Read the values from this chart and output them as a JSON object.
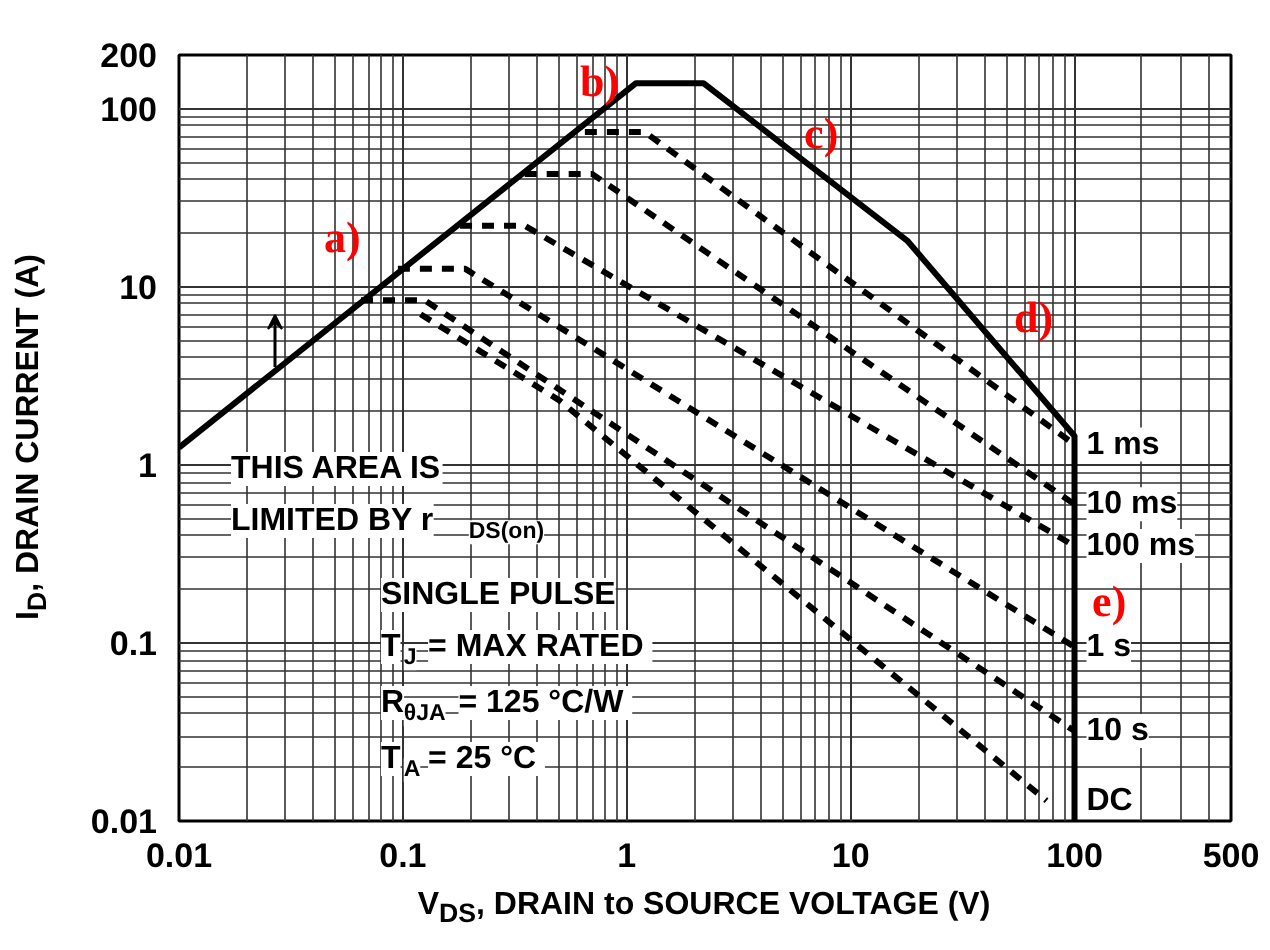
{
  "chart_data": {
    "type": "line",
    "xlabel": "V$_{DS}$, DRAIN to SOURCE VOLTAGE (V)",
    "ylabel": "I$_{D}$, DRAIN CURRENT (A)",
    "log": "xy",
    "grid": true,
    "marker": "none",
    "xlim": [
      0.01,
      500
    ],
    "xticks": [
      0.01,
      0.1,
      1,
      10,
      100,
      500
    ],
    "ylim": [
      0.01,
      200
    ],
    "yticks": [
      0.01,
      0.1,
      1,
      10,
      100,
      200
    ],
    "series": [
      {
        "color": "#000000",
        "line_style": "solid",
        "x": [
          0.01,
          1.1,
          2.2,
          18,
          100,
          100
        ],
        "values": [
          1.25,
          139,
          139,
          18,
          1.45,
          0.01
        ]
      },
      {
        "name": "1 ms",
        "color": "#000000",
        "line_style": "dashed",
        "x": [
          0.65,
          1.2,
          100
        ],
        "values": [
          74,
          74,
          1.3
        ]
      },
      {
        "name": "10 ms",
        "color": "#000000",
        "line_style": "dashed",
        "x": [
          0.35,
          0.7,
          100
        ],
        "values": [
          43,
          43,
          0.6
        ]
      },
      {
        "name": "100 ms",
        "color": "#000000",
        "line_style": "dashed",
        "x": [
          0.18,
          0.35,
          100
        ],
        "values": [
          22,
          22,
          0.35
        ]
      },
      {
        "name": "1 s",
        "color": "#000000",
        "line_style": "dashed",
        "x": [
          0.095,
          0.19,
          100
        ],
        "values": [
          12.6,
          12.6,
          0.095
        ]
      },
      {
        "name": "10 s",
        "color": "#000000",
        "line_style": "dashed",
        "x": [
          0.065,
          0.125,
          100
        ],
        "values": [
          8.4,
          8.4,
          0.032
        ]
      },
      {
        "name": "DC",
        "color": "#000000",
        "line_style": "dashed",
        "x": [
          0.12,
          0.5,
          75
        ],
        "values": [
          7,
          2.3,
          0.013
        ]
      }
    ],
    "annotations": [
      "THIS AREA IS\nLIMITED BY r$_{DS(on)}$",
      "SINGLE PULSE\nT$_{J}$ = MAX RATED\nR$_{θJA}$ = 125 °C/W\nT$_{A}$ = 25 °C",
      "a)",
      "b)",
      "c)",
      "d)",
      "e)"
    ]
  }
}
